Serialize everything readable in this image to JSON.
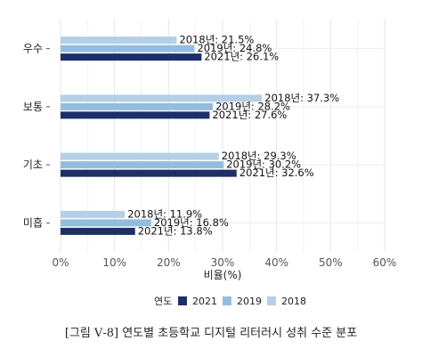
{
  "chart_data": {
    "type": "bar",
    "orientation": "horizontal",
    "categories": [
      "우수",
      "보통",
      "기초",
      "미흡"
    ],
    "series": [
      {
        "name": "2018",
        "values": [
          21.5,
          37.3,
          29.3,
          11.9
        ],
        "color": "#b4cfe6",
        "labels": [
          "2018년: 21.5%",
          "2018년: 37.3%",
          "2018년: 29.3%",
          "2018년: 11.9%"
        ]
      },
      {
        "name": "2019",
        "values": [
          24.8,
          28.2,
          30.2,
          16.8
        ],
        "color": "#93bddf",
        "labels": [
          "2019년: 24.8%",
          "2019년: 28.2%",
          "2019년: 30.2%",
          "2019년: 16.8%"
        ]
      },
      {
        "name": "2021",
        "values": [
          26.1,
          27.6,
          32.6,
          13.8
        ],
        "color": "#1d2f68",
        "labels": [
          "2021년: 26.1%",
          "2021년: 27.6%",
          "2021년: 32.6%",
          "2021년: 13.8%"
        ]
      }
    ],
    "xlabel": "비율(%)",
    "xlim": [
      0,
      60
    ],
    "xticks": [
      0,
      10,
      20,
      30,
      40,
      50,
      60
    ],
    "xtick_labels": [
      "0%",
      "10%",
      "20%",
      "30%",
      "40%",
      "50%",
      "60%"
    ],
    "grid": true,
    "legend": {
      "title": "연도",
      "placement": "bottom",
      "entries": [
        {
          "name": "2021",
          "color": "#1d2f68"
        },
        {
          "name": "2019",
          "color": "#93bddf"
        },
        {
          "name": "2018",
          "color": "#b4cfe6"
        }
      ]
    }
  },
  "caption": "[그림 Ⅴ-8] 연도별 초등학교 디지털 리터러시 성취 수준 분포"
}
